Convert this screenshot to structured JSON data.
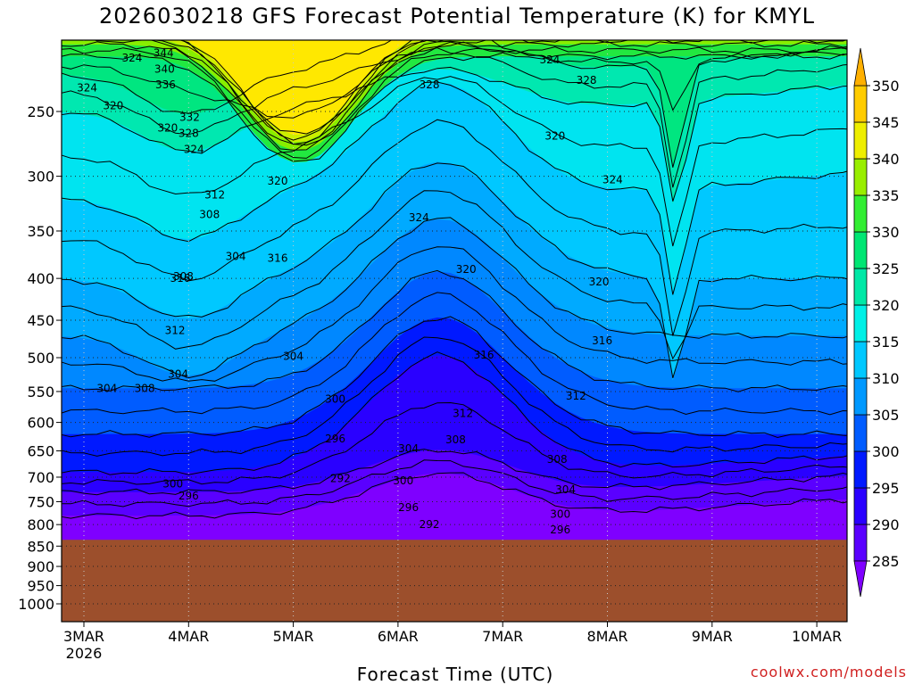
{
  "chart_data": {
    "type": "heatmap",
    "title": "2026030218 GFS Forecast Potential Temperature (K) for KMYL",
    "xlabel": "Forecast Time (UTC)",
    "ylabel": "",
    "x_ticks": [
      "3MAR",
      "4MAR",
      "5MAR",
      "6MAR",
      "7MAR",
      "8MAR",
      "9MAR",
      "10MAR"
    ],
    "x_year_label": "2026",
    "y_ticks": [
      250,
      300,
      350,
      400,
      450,
      500,
      550,
      600,
      650,
      700,
      750,
      800,
      850,
      900,
      950,
      1000
    ],
    "y_scale": "log-pressure (hPa), decreasing upward",
    "ylim": [
      1000,
      200
    ],
    "surface_pressure_approx": 835,
    "grid": "dotted",
    "colorbar": {
      "levels": [
        285,
        290,
        295,
        300,
        305,
        310,
        315,
        320,
        325,
        330,
        335,
        340,
        345,
        350
      ],
      "colors": [
        "#7f00ff",
        "#5a00ff",
        "#2a00ff",
        "#0019ff",
        "#005cff",
        "#0099ff",
        "#00c8ff",
        "#00f0e6",
        "#00e8a6",
        "#00e673",
        "#33ee33",
        "#99ee00",
        "#eeee00",
        "#ffcc00",
        "#ffb000"
      ],
      "extend": "both"
    },
    "contour_levels": [
      292,
      296,
      300,
      304,
      308,
      312,
      316,
      320,
      324,
      328,
      332,
      336,
      340,
      344
    ],
    "contour_labels": [
      {
        "text": "344",
        "x": 0.76,
        "p": 212
      },
      {
        "text": "340",
        "x": 0.77,
        "p": 222
      },
      {
        "text": "336",
        "x": 0.78,
        "p": 232
      },
      {
        "text": "332",
        "x": 1.01,
        "p": 254
      },
      {
        "text": "328",
        "x": 1.0,
        "p": 266
      },
      {
        "text": "324",
        "x": 1.05,
        "p": 278
      },
      {
        "text": "324",
        "x": 0.46,
        "p": 215
      },
      {
        "text": "324",
        "x": 0.03,
        "p": 234
      },
      {
        "text": "320",
        "x": 0.28,
        "p": 246
      },
      {
        "text": "320",
        "x": 0.8,
        "p": 262
      },
      {
        "text": "312",
        "x": 1.25,
        "p": 316
      },
      {
        "text": "308",
        "x": 1.2,
        "p": 334
      },
      {
        "text": "304",
        "x": 1.45,
        "p": 376
      },
      {
        "text": "316",
        "x": 1.85,
        "p": 378
      },
      {
        "text": "320",
        "x": 1.85,
        "p": 304
      },
      {
        "text": "316",
        "x": 0.92,
        "p": 400
      },
      {
        "text": "308",
        "x": 0.95,
        "p": 398
      },
      {
        "text": "312",
        "x": 0.87,
        "p": 463
      },
      {
        "text": "304",
        "x": 0.9,
        "p": 524
      },
      {
        "text": "304",
        "x": 2.0,
        "p": 498
      },
      {
        "text": "308",
        "x": 0.58,
        "p": 545
      },
      {
        "text": "304",
        "x": 0.22,
        "p": 545
      },
      {
        "text": "300",
        "x": 2.4,
        "p": 562
      },
      {
        "text": "296",
        "x": 2.4,
        "p": 628
      },
      {
        "text": "292",
        "x": 2.45,
        "p": 703
      },
      {
        "text": "300",
        "x": 0.85,
        "p": 713
      },
      {
        "text": "296",
        "x": 1.0,
        "p": 738
      },
      {
        "text": "328",
        "x": 3.3,
        "p": 232
      },
      {
        "text": "324",
        "x": 4.45,
        "p": 216
      },
      {
        "text": "328",
        "x": 4.8,
        "p": 229
      },
      {
        "text": "320",
        "x": 4.5,
        "p": 268
      },
      {
        "text": "324",
        "x": 5.05,
        "p": 303
      },
      {
        "text": "320",
        "x": 3.65,
        "p": 390
      },
      {
        "text": "324",
        "x": 3.2,
        "p": 337
      },
      {
        "text": "316",
        "x": 3.82,
        "p": 496
      },
      {
        "text": "312",
        "x": 3.62,
        "p": 585
      },
      {
        "text": "308",
        "x": 3.55,
        "p": 630
      },
      {
        "text": "304",
        "x": 3.1,
        "p": 646
      },
      {
        "text": "300",
        "x": 3.05,
        "p": 707
      },
      {
        "text": "296",
        "x": 3.1,
        "p": 762
      },
      {
        "text": "292",
        "x": 3.3,
        "p": 800
      },
      {
        "text": "320",
        "x": 4.92,
        "p": 404
      },
      {
        "text": "316",
        "x": 4.95,
        "p": 477
      },
      {
        "text": "312",
        "x": 4.7,
        "p": 557
      },
      {
        "text": "308",
        "x": 4.52,
        "p": 666
      },
      {
        "text": "304",
        "x": 4.6,
        "p": 725
      },
      {
        "text": "300",
        "x": 4.55,
        "p": 777
      },
      {
        "text": "296",
        "x": 4.55,
        "p": 812
      }
    ]
  },
  "credit": "coolwx.com/models"
}
